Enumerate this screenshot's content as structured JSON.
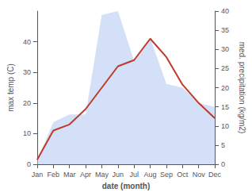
{
  "chart_data": {
    "type": "line",
    "xlabel": "date (month)",
    "ylabel": "max temp (C)",
    "y2label": "med. precipitation (kg/m2)",
    "categories": [
      "Jan",
      "Feb",
      "Mar",
      "Apr",
      "May",
      "Jun",
      "Jul",
      "Aug",
      "Sep",
      "Oct",
      "Nov",
      "Dec"
    ],
    "ylim": [
      0,
      50
    ],
    "yticks": [
      0,
      10,
      20,
      30,
      40
    ],
    "y2lim": [
      0,
      40
    ],
    "y2ticks": [
      0,
      5,
      10,
      15,
      20,
      25,
      30,
      35,
      40
    ],
    "grid": false,
    "series": [
      {
        "type": "area",
        "color": "#aec6f0",
        "axis": "y2",
        "values": [
          1.0,
          11.0,
          13.0,
          13.0,
          39.0,
          40.0,
          27.0,
          33.0,
          21.0,
          20.0,
          16.0,
          15.0
        ]
      },
      {
        "type": "line",
        "color": "#c0392b",
        "values": [
          1.5,
          11.0,
          13.0,
          18.0,
          25.0,
          32.0,
          34.0,
          41.0,
          35.0,
          26.0,
          20.0,
          15.0
        ]
      }
    ]
  }
}
